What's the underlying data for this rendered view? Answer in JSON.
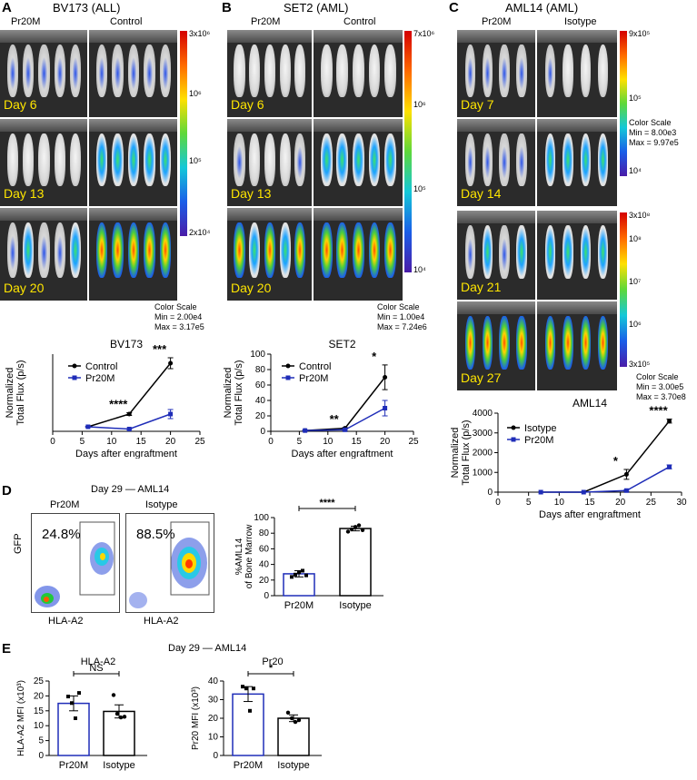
{
  "panel_a": {
    "letter": "A",
    "title": "BV173 (ALL)",
    "col_left": "Pr20M",
    "col_right": "Control",
    "days": [
      "Day 6",
      "Day 13",
      "Day 20"
    ],
    "scale_ticks": [
      "3x10⁶",
      "10⁶",
      "10⁵",
      "2x10⁴"
    ],
    "color_scale": [
      "Color Scale",
      "Min = 2.00e4",
      "Max = 3.17e5"
    ]
  },
  "panel_b": {
    "letter": "B",
    "title": "SET2 (AML)",
    "col_left": "Pr20M",
    "col_right": "Control",
    "days": [
      "Day 6",
      "Day 13",
      "Day 20"
    ],
    "scale_ticks": [
      "7x10⁶",
      "10⁶",
      "10⁵",
      "10⁴"
    ],
    "color_scale": [
      "Color Scale",
      "Min = 1.00e4",
      "Max = 7.24e6"
    ]
  },
  "panel_c": {
    "letter": "C",
    "title": "AML14 (AML)",
    "col_left": "Pr20M",
    "col_right": "Isotype",
    "days": [
      "Day 7",
      "Day 14",
      "Day 21",
      "Day 27"
    ],
    "scale1_ticks": [
      "9x10⁵",
      "10⁵",
      "10⁴"
    ],
    "color_scale1": [
      "Color Scale",
      "Min = 8.00e3",
      "Max = 9.97e5"
    ],
    "scale2_ticks": [
      "3x10⁸",
      "10⁸",
      "10⁷",
      "10⁶",
      "3x10⁵"
    ],
    "color_scale2": [
      "Color Scale",
      "Min = 3.00e5",
      "Max = 3.70e8"
    ]
  },
  "panel_d": {
    "letter": "D",
    "title": "Day 29 — AML14",
    "flow_left_label": "Pr20M",
    "flow_right_label": "Isotype",
    "flow_left_pct": "24.8%",
    "flow_right_pct": "88.5%",
    "flow_ylabel": "GFP",
    "flow_xlabel": "HLA-A2",
    "sig": "****"
  },
  "panel_e": {
    "letter": "E",
    "title": "Day 29 — AML14",
    "sig_left": "NS",
    "sig_right": "*"
  },
  "colors": {
    "black_series": "#000000",
    "blue_series": "#1f2db8",
    "day_label": "#ffe600"
  },
  "chart_data": [
    {
      "type": "line",
      "title": "BV173",
      "xlabel": "Days after engraftment",
      "ylabel": "Normalized Total Flux (p/s)",
      "xlim": [
        0,
        25
      ],
      "xticks": [
        0,
        5,
        10,
        15,
        20,
        25
      ],
      "ylim": [
        0,
        17
      ],
      "yticks": [],
      "series": [
        {
          "name": "Control",
          "color": "#000000",
          "x": [
            6,
            13,
            20
          ],
          "y": [
            1.0,
            3.8,
            15.0
          ],
          "err": [
            0.1,
            0.3,
            1.2
          ]
        },
        {
          "name": "Pr20M",
          "color": "#1f2db8",
          "x": [
            6,
            13,
            20
          ],
          "y": [
            1.0,
            0.5,
            3.8
          ],
          "err": [
            0.1,
            0.1,
            1.0
          ]
        }
      ],
      "annotations": [
        {
          "x": 13,
          "text": "****"
        },
        {
          "x": 20,
          "text": "***"
        }
      ]
    },
    {
      "type": "line",
      "title": "SET2",
      "xlabel": "Days after engraftment",
      "ylabel": "Normalized Total Flux (p/s)",
      "xlim": [
        0,
        25
      ],
      "xticks": [
        0,
        5,
        10,
        15,
        20,
        25
      ],
      "ylim": [
        0,
        100
      ],
      "yticks": [
        0,
        20,
        40,
        60,
        80,
        100
      ],
      "series": [
        {
          "name": "Control",
          "color": "#000000",
          "x": [
            6,
            13,
            20
          ],
          "y": [
            1,
            4,
            70
          ],
          "err": [
            0.5,
            1,
            16
          ]
        },
        {
          "name": "Pr20M",
          "color": "#1f2db8",
          "x": [
            6,
            13,
            20
          ],
          "y": [
            1,
            2,
            30
          ],
          "err": [
            0.5,
            1,
            10
          ]
        }
      ],
      "annotations": [
        {
          "x": 13,
          "text": "**"
        },
        {
          "x": 20,
          "text": "*"
        }
      ]
    },
    {
      "type": "line",
      "title": "AML14",
      "xlabel": "Days after engraftment",
      "ylabel": "Normalized Total Flux (p/s)",
      "xlim": [
        0,
        30
      ],
      "xticks": [
        0,
        5,
        10,
        15,
        20,
        25,
        30
      ],
      "ylim": [
        0,
        4000
      ],
      "yticks": [
        0,
        1000,
        2000,
        3000,
        4000
      ],
      "series": [
        {
          "name": "Isotype",
          "color": "#000000",
          "x": [
            7,
            14,
            21,
            28
          ],
          "y": [
            0,
            0,
            900,
            3600
          ],
          "err": [
            0,
            0,
            250,
            100
          ]
        },
        {
          "name": "Pr20M",
          "color": "#1f2db8",
          "x": [
            7,
            14,
            21,
            28
          ],
          "y": [
            0,
            0,
            80,
            1280
          ],
          "err": [
            0,
            0,
            40,
            100
          ]
        }
      ],
      "annotations": [
        {
          "x": 21,
          "text": "*"
        },
        {
          "x": 28,
          "text": "****"
        }
      ]
    },
    {
      "type": "bar",
      "title": "",
      "ylabel": "%AML14 of Bone Marrow",
      "categories": [
        "Pr20M",
        "Isotype"
      ],
      "values": [
        28,
        86
      ],
      "err": [
        4,
        3
      ],
      "points": [
        [
          24,
          27,
          30,
          32,
          26
        ],
        [
          82,
          85,
          88,
          90,
          84
        ]
      ],
      "ylim": [
        0,
        100
      ],
      "yticks": [
        0,
        20,
        40,
        60,
        80,
        100
      ],
      "bar_colors": [
        "#1f2db8",
        "#000000"
      ]
    },
    {
      "type": "bar",
      "title": "HLA-A2",
      "ylabel": "HLA-A2 MFI (x10³)",
      "categories": [
        "Pr20M",
        "Isotype"
      ],
      "values": [
        17.5,
        14.8
      ],
      "err": [
        2.5,
        2.2
      ],
      "points": [
        [
          19.8,
          17.6,
          12.5,
          21.0
        ],
        [
          20.3,
          14.0,
          12.8,
          13.0
        ]
      ],
      "ylim": [
        0,
        25
      ],
      "yticks": [
        0,
        5,
        10,
        15,
        20,
        25
      ],
      "bar_colors": [
        "#1f2db8",
        "#000000"
      ]
    },
    {
      "type": "bar",
      "title": "Pr20",
      "ylabel": "Pr20 MFI (x10³)",
      "categories": [
        "Pr20M",
        "Isotype"
      ],
      "values": [
        33,
        20
      ],
      "err": [
        4,
        1.8
      ],
      "points": [
        [
          37,
          36,
          24,
          36
        ],
        [
          23,
          20,
          18,
          19
        ]
      ],
      "ylim": [
        0,
        40
      ],
      "yticks": [
        0,
        10,
        20,
        30,
        40
      ],
      "bar_colors": [
        "#1f2db8",
        "#000000"
      ]
    }
  ]
}
